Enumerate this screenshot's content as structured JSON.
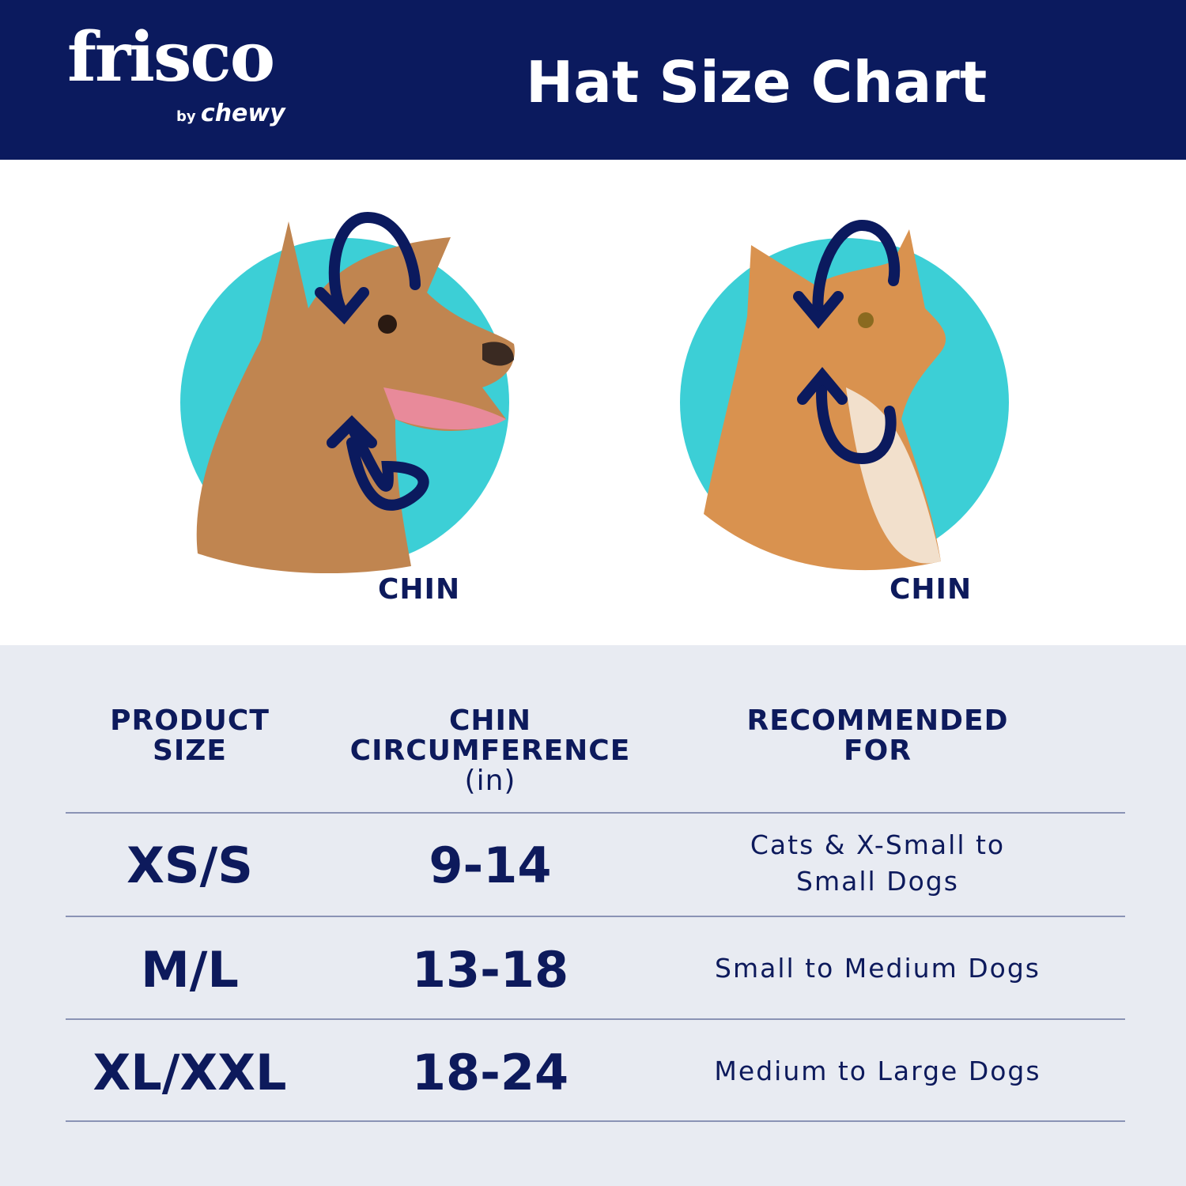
{
  "header": {
    "logo": {
      "brand": "frisco",
      "by": "by",
      "sub": "chewy"
    },
    "title": "Hat Size Chart"
  },
  "colors": {
    "navy": "#0b1a5e",
    "teal": "#3ccfd6",
    "table_bg": "#e8ebf2"
  },
  "illustrations": [
    {
      "animal": "dog",
      "label": "CHIN"
    },
    {
      "animal": "cat",
      "label": "CHIN"
    }
  ],
  "table": {
    "headers": [
      {
        "line1": "PRODUCT",
        "line2": "SIZE",
        "unit": ""
      },
      {
        "line1": "CHIN",
        "line2": "CIRCUMFERENCE",
        "unit": "(in)"
      },
      {
        "line1": "RECOMMENDED",
        "line2": "FOR",
        "unit": ""
      }
    ],
    "rows": [
      {
        "size": "XS/S",
        "chin": "9-14",
        "rec1": "Cats & X-Small to",
        "rec2": "Small Dogs"
      },
      {
        "size": "M/L",
        "chin": "13-18",
        "rec1": "Small to Medium Dogs",
        "rec2": ""
      },
      {
        "size": "XL/XXL",
        "chin": "18-24",
        "rec1": "Medium to Large Dogs",
        "rec2": ""
      }
    ]
  }
}
